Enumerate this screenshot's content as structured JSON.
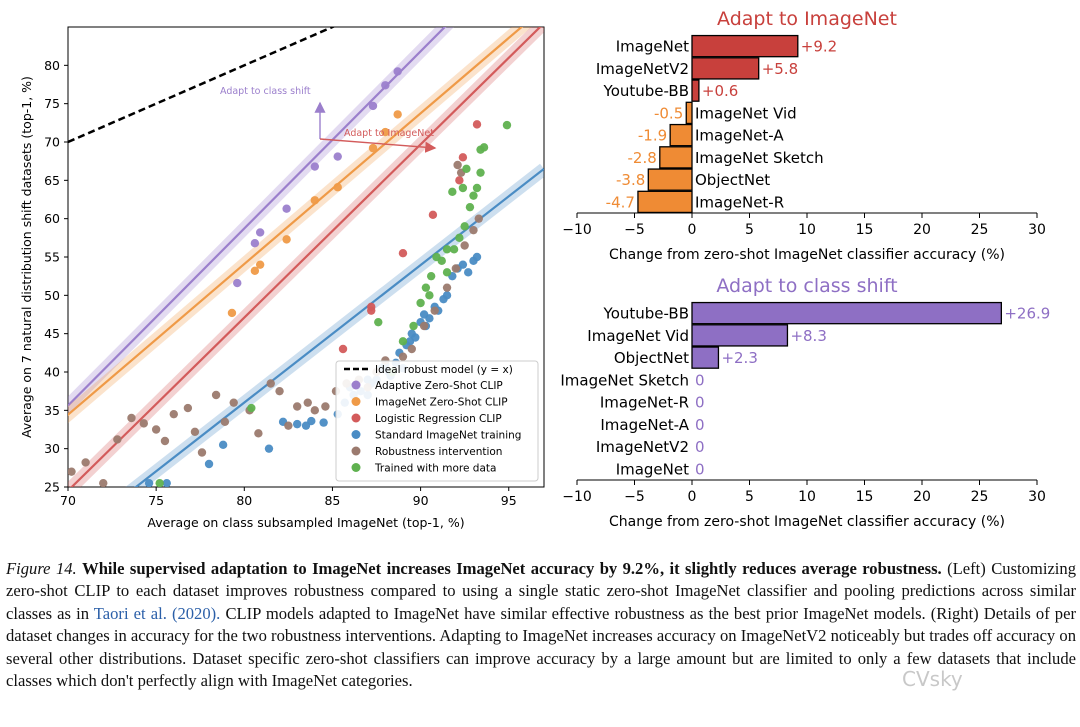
{
  "chart_data": [
    {
      "type": "scatter",
      "xlabel": "Average on class subsampled ImageNet (top-1, %)",
      "ylabel": "Average on 7 natural distribution shift datasets (top-1, %)",
      "xlim": [
        70,
        97
      ],
      "ylim": [
        25,
        85
      ],
      "xticks": [
        70,
        75,
        80,
        85,
        90,
        95
      ],
      "yticks": [
        25,
        30,
        35,
        40,
        45,
        50,
        55,
        60,
        65,
        70,
        75,
        80
      ],
      "grid": false,
      "legend_position": "bottom-right",
      "ideal_line": {
        "name": "Ideal robust model (y = x)",
        "color": "#000000"
      },
      "series": [
        {
          "name": "Adaptive Zero-Shot CLIP",
          "color": "#9b7fcc",
          "fit": [
            [
              68,
              31.0
            ],
            [
              97,
              98.0
            ]
          ],
          "points": [
            [
              79.6,
              51.6
            ],
            [
              80.6,
              56.8
            ],
            [
              80.9,
              58.2
            ],
            [
              82.4,
              61.3
            ],
            [
              84.0,
              66.8
            ],
            [
              85.3,
              68.1
            ],
            [
              87.3,
              74.7
            ],
            [
              88.0,
              77.4
            ],
            [
              88.7,
              79.2
            ]
          ]
        },
        {
          "name": "ImageNet Zero-Shot CLIP",
          "color": "#ef9a47",
          "fit": [
            [
              68,
              30.5
            ],
            [
              97,
              87.5
            ]
          ],
          "points": [
            [
              79.3,
              47.7
            ],
            [
              80.6,
              53.2
            ],
            [
              80.9,
              54.0
            ],
            [
              82.4,
              57.3
            ],
            [
              84.0,
              62.4
            ],
            [
              85.3,
              64.1
            ],
            [
              87.3,
              69.2
            ],
            [
              88.0,
              71.3
            ],
            [
              88.7,
              73.6
            ]
          ]
        },
        {
          "name": "Logistic Regression CLIP",
          "color": "#d35b5b",
          "fit": [
            [
              68,
              20.0
            ],
            [
              97,
              85.5
            ]
          ],
          "points": [
            [
              85.6,
              43.0
            ],
            [
              87.2,
              48.0
            ],
            [
              87.2,
              48.5
            ],
            [
              89.0,
              55.5
            ],
            [
              90.7,
              60.5
            ],
            [
              92.2,
              65.0
            ],
            [
              92.4,
              68.0
            ],
            [
              93.2,
              72.3
            ]
          ]
        },
        {
          "name": "Standard ImageNet training",
          "color": "#4a8cc4",
          "fit": [
            [
              68,
              14.5
            ],
            [
              97,
              66.5
            ]
          ],
          "points": [
            [
              74.6,
              25.5
            ],
            [
              75.6,
              25.5
            ],
            [
              78.0,
              28.0
            ],
            [
              78.8,
              30.5
            ],
            [
              81.4,
              30.0
            ],
            [
              82.2,
              33.5
            ],
            [
              83.0,
              33.2
            ],
            [
              83.8,
              33.6
            ],
            [
              84.5,
              33.4
            ],
            [
              85.3,
              34.5
            ],
            [
              85.7,
              36.0
            ],
            [
              86.2,
              37.0
            ],
            [
              86.6,
              37.5
            ],
            [
              87.0,
              37.0
            ],
            [
              87.2,
              38.5
            ],
            [
              87.5,
              39.0
            ],
            [
              87.8,
              40.5
            ],
            [
              88.0,
              41.0
            ],
            [
              88.3,
              39.5
            ],
            [
              88.6,
              41.2
            ],
            [
              88.8,
              42.5
            ],
            [
              89.0,
              40.5
            ],
            [
              89.2,
              43.5
            ],
            [
              89.4,
              44.0
            ],
            [
              89.7,
              44.5
            ],
            [
              90.0,
              46.5
            ],
            [
              90.3,
              46.0
            ],
            [
              90.5,
              47.0
            ],
            [
              90.8,
              48.5
            ],
            [
              91.0,
              48.0
            ],
            [
              91.3,
              49.5
            ],
            [
              91.5,
              50.0
            ],
            [
              91.8,
              52.5
            ],
            [
              92.1,
              53.5
            ],
            [
              92.4,
              54.0
            ],
            [
              92.7,
              53.0
            ],
            [
              93.0,
              54.5
            ],
            [
              93.2,
              55.0
            ],
            [
              83.5,
              33.0
            ],
            [
              86.0,
              38.0
            ],
            [
              87.0,
              39.0
            ],
            [
              88.2,
              40.0
            ],
            [
              89.5,
              45.0
            ],
            [
              90.2,
              47.5
            ]
          ]
        },
        {
          "name": "Robustness intervention",
          "color": "#9b7a6e",
          "fit": null,
          "points": [
            [
              70.2,
              27.0
            ],
            [
              71.0,
              28.2
            ],
            [
              72.0,
              25.5
            ],
            [
              72.8,
              31.2
            ],
            [
              73.6,
              34.0
            ],
            [
              74.3,
              33.3
            ],
            [
              75.0,
              32.5
            ],
            [
              75.5,
              31.0
            ],
            [
              76.0,
              34.5
            ],
            [
              76.8,
              35.3
            ],
            [
              77.2,
              32.2
            ],
            [
              77.6,
              29.5
            ],
            [
              78.4,
              37.0
            ],
            [
              78.9,
              33.5
            ],
            [
              79.4,
              36.0
            ],
            [
              80.3,
              35.0
            ],
            [
              80.8,
              32.0
            ],
            [
              81.5,
              38.5
            ],
            [
              82.0,
              37.5
            ],
            [
              82.5,
              33.0
            ],
            [
              83.0,
              35.5
            ],
            [
              83.6,
              36.0
            ],
            [
              84.0,
              35.0
            ],
            [
              84.6,
              35.5
            ],
            [
              85.2,
              37.5
            ],
            [
              85.8,
              38.5
            ],
            [
              86.5,
              39.0
            ],
            [
              87.0,
              38.0
            ],
            [
              87.5,
              40.0
            ],
            [
              88.0,
              41.5
            ],
            [
              88.4,
              40.0
            ],
            [
              89.0,
              42.0
            ],
            [
              89.5,
              43.0
            ],
            [
              90.2,
              46.0
            ],
            [
              90.8,
              48.0
            ],
            [
              91.5,
              51.0
            ],
            [
              92.0,
              53.5
            ],
            [
              92.5,
              56.5
            ],
            [
              93.0,
              58.5
            ],
            [
              93.3,
              60.0
            ],
            [
              92.1,
              67.0
            ],
            [
              92.3,
              66.0
            ]
          ]
        },
        {
          "name": "Trained with more data",
          "color": "#5fb14f",
          "fit": null,
          "points": [
            [
              75.2,
              25.5
            ],
            [
              80.4,
              35.3
            ],
            [
              87.6,
              46.5
            ],
            [
              88.4,
              40.0
            ],
            [
              89.0,
              44.0
            ],
            [
              89.6,
              46.0
            ],
            [
              90.0,
              49.0
            ],
            [
              90.3,
              51.0
            ],
            [
              90.6,
              52.5
            ],
            [
              90.9,
              55.0
            ],
            [
              91.2,
              54.5
            ],
            [
              91.5,
              53.0
            ],
            [
              91.9,
              56.0
            ],
            [
              92.2,
              57.5
            ],
            [
              92.5,
              59.0
            ],
            [
              92.8,
              61.5
            ],
            [
              93.0,
              63.0
            ],
            [
              93.2,
              64.0
            ],
            [
              93.4,
              66.0
            ],
            [
              92.4,
              64.0
            ],
            [
              91.8,
              63.5
            ],
            [
              93.4,
              69.0
            ],
            [
              93.6,
              69.3
            ],
            [
              94.9,
              72.2
            ],
            [
              92.6,
              66.5
            ],
            [
              91.5,
              56.0
            ],
            [
              90.5,
              50.0
            ]
          ]
        }
      ],
      "annotations": [
        {
          "text": "Adapt to class shift",
          "color": "#9b7fcc"
        },
        {
          "text": "Adapt to ImageNet",
          "color": "#d35b5b"
        }
      ]
    },
    {
      "type": "bar",
      "orientation": "horizontal",
      "title": "Adapt to ImageNet",
      "title_color": "#c8403c",
      "xlabel": "Change from zero-shot ImageNet classifier accuracy (%)",
      "xlim": [
        -10,
        30
      ],
      "xticks": [
        -10,
        -5,
        0,
        5,
        10,
        15,
        20,
        25,
        30
      ],
      "categories": [
        "ImageNet",
        "ImageNetV2",
        "Youtube-BB",
        "ImageNet Vid",
        "ImageNet-A",
        "ImageNet Sketch",
        "ObjectNet",
        "ImageNet-R"
      ],
      "values": [
        9.2,
        5.8,
        0.6,
        -0.5,
        -1.9,
        -2.8,
        -3.8,
        -4.7
      ],
      "value_labels": [
        "+9.2",
        "+5.8",
        "+0.6",
        "-0.5",
        "-1.9",
        "-2.8",
        "-3.8",
        "-4.7"
      ],
      "positive_color": "#c8403c",
      "negative_color": "#ef8b34"
    },
    {
      "type": "bar",
      "orientation": "horizontal",
      "title": "Adapt to class shift",
      "title_color": "#8e6fc4",
      "xlabel": "Change from zero-shot ImageNet classifier accuracy (%)",
      "xlim": [
        -10,
        30
      ],
      "xticks": [
        -10,
        -5,
        0,
        5,
        10,
        15,
        20,
        25,
        30
      ],
      "categories": [
        "Youtube-BB",
        "ImageNet Vid",
        "ObjectNet",
        "ImageNet Sketch",
        "ImageNet-R",
        "ImageNet-A",
        "ImageNetV2",
        "ImageNet"
      ],
      "values": [
        26.9,
        8.3,
        2.3,
        0,
        0,
        0,
        0,
        0
      ],
      "value_labels": [
        "+26.9",
        "+8.3",
        "+2.3",
        "0",
        "0",
        "0",
        "0",
        "0"
      ],
      "positive_color": "#8e6fc4",
      "negative_color": "#8e6fc4"
    }
  ],
  "caption": {
    "label": "Figure 14.",
    "bold": "While supervised adaptation to ImageNet increases ImageNet accuracy by 9.2%, it slightly reduces average robustness.",
    "text_before_cite": "(Left) Customizing zero-shot CLIP to each dataset improves robustness compared to using a single static zero-shot ImageNet classifier and pooling predictions across similar classes as in",
    "cite": "Taori et al. (2020).",
    "text_after_cite": "CLIP models adapted to ImageNet have similar effective robustness as the best prior ImageNet models. (Right) Details of per dataset changes in accuracy for the two robustness interventions. Adapting to ImageNet increases accuracy on ImageNetV2 noticeably but trades off accuracy on several other distributions. Dataset specific zero-shot classifiers can improve accuracy by a large amount but are limited to only a few datasets that include classes which don't perfectly align with ImageNet categories."
  },
  "watermark": "CVsky"
}
